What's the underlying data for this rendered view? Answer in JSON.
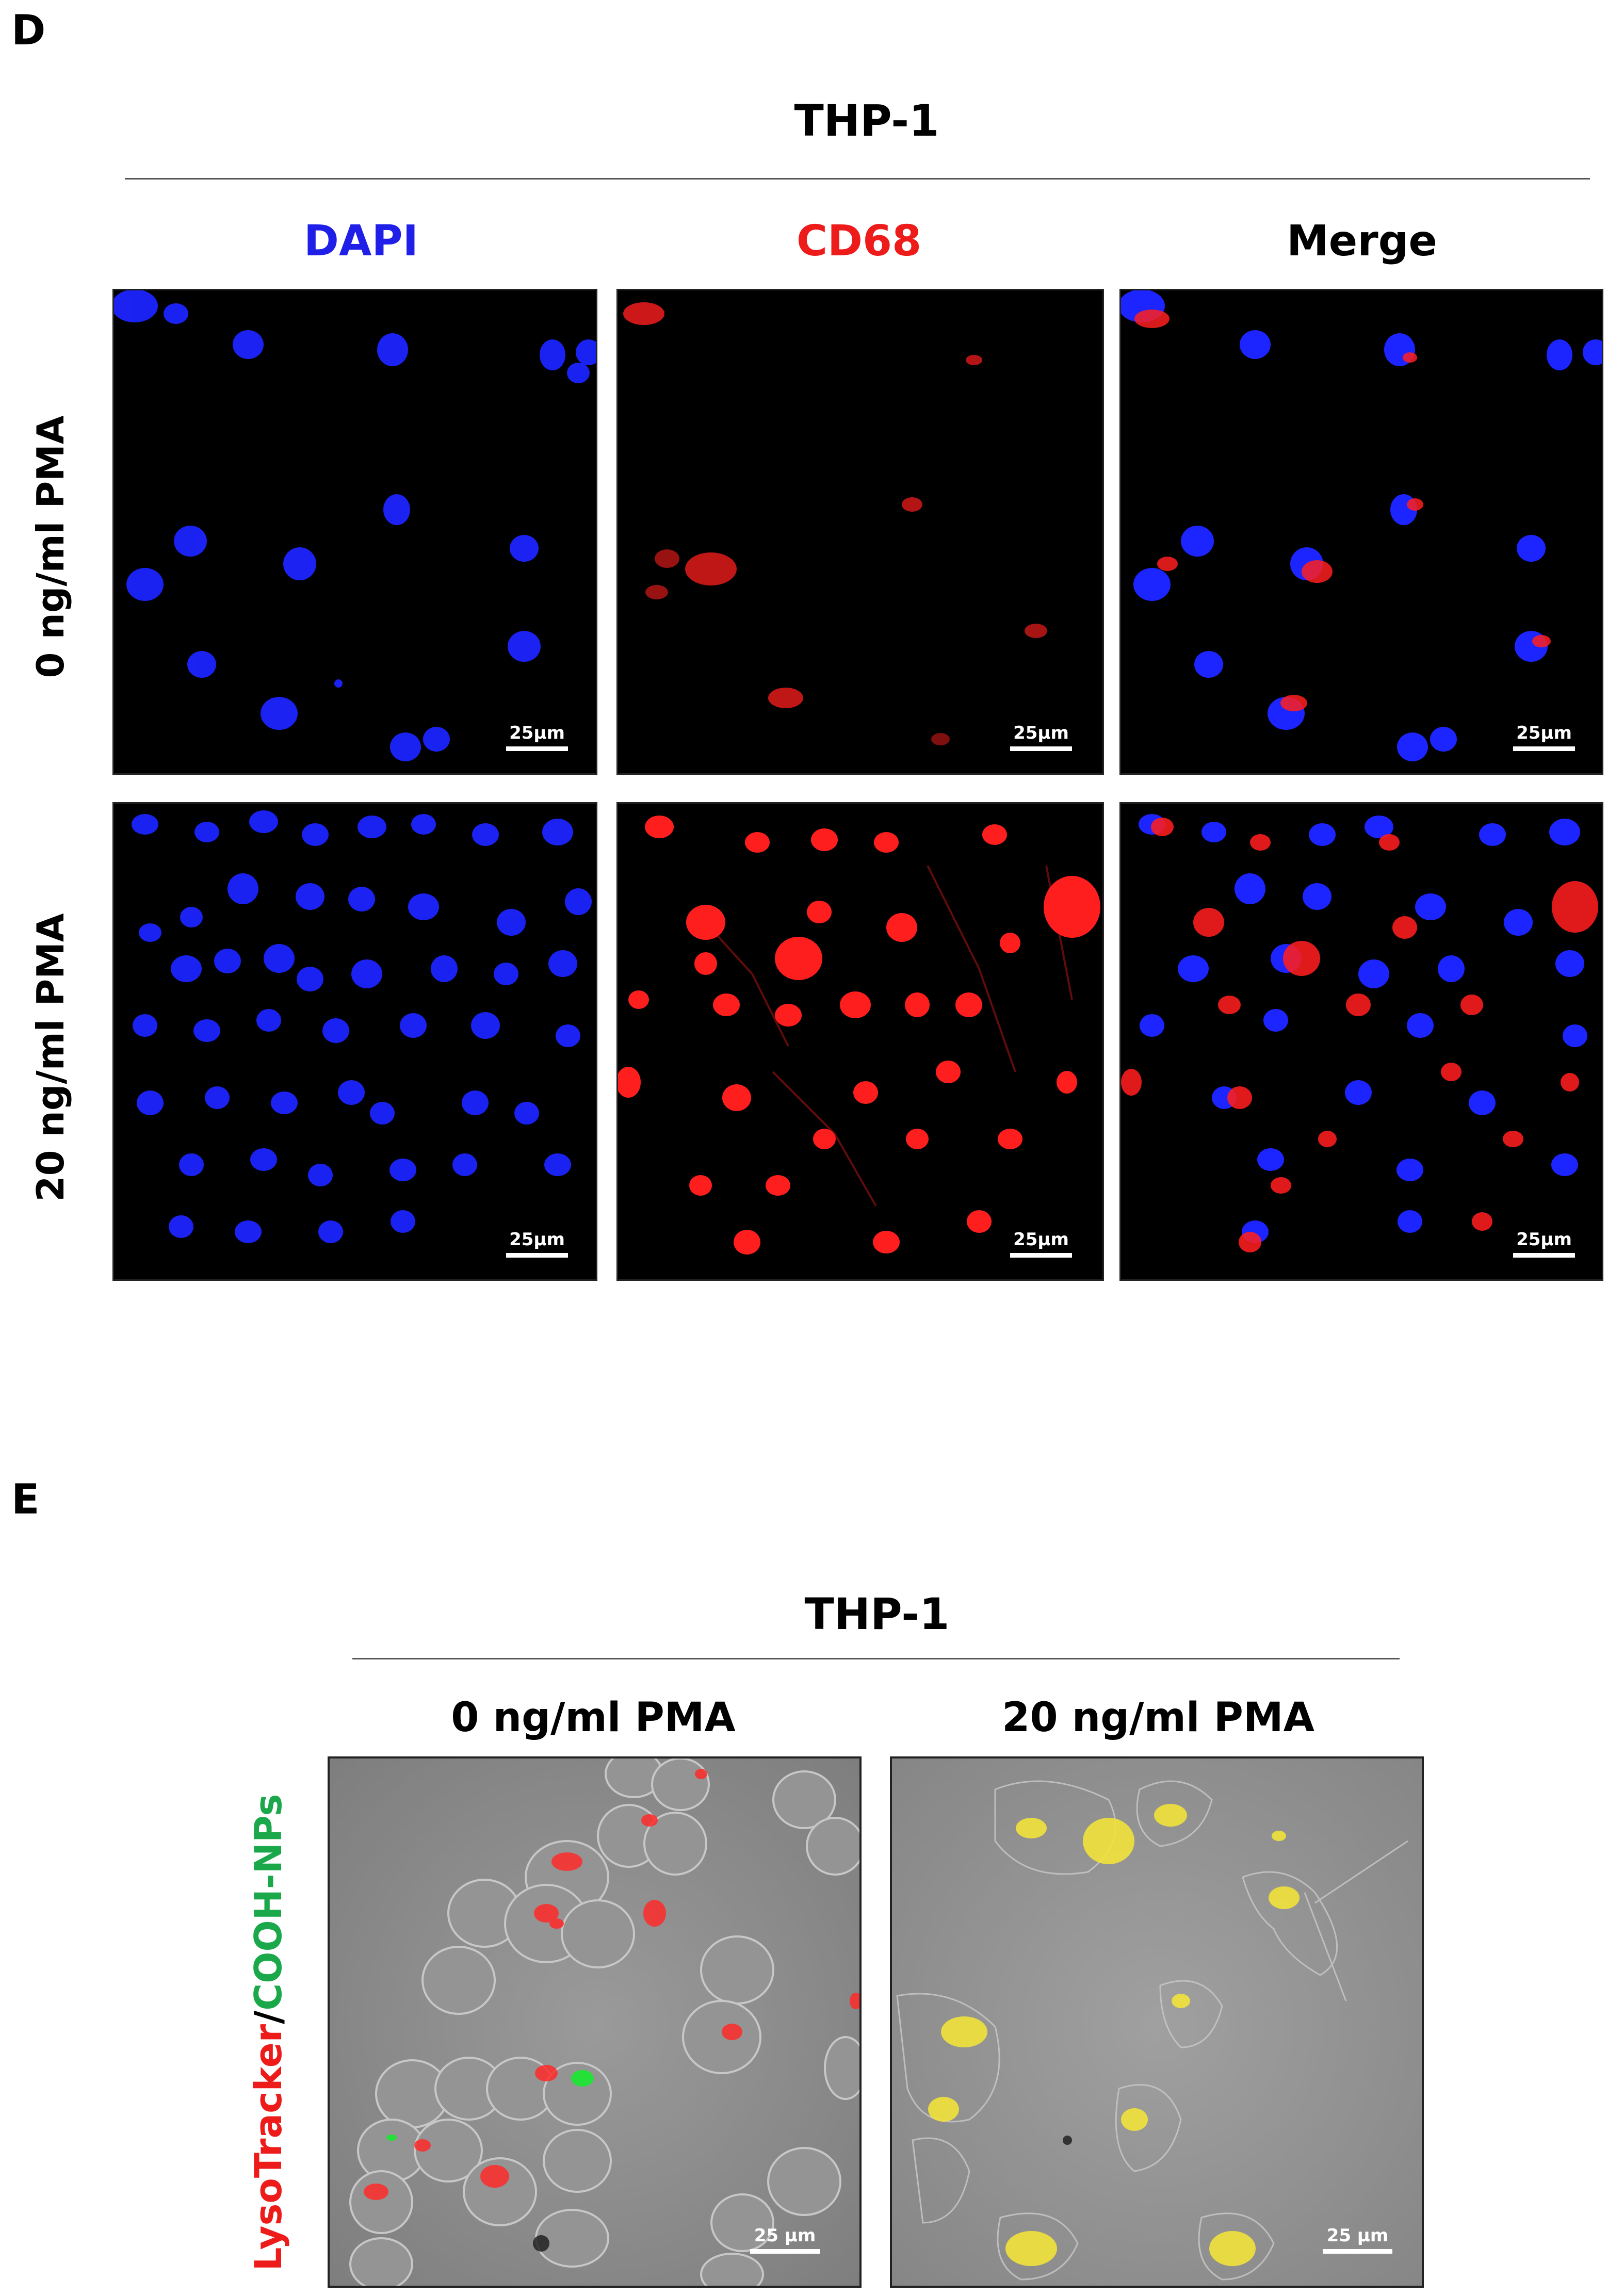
{
  "panel_d": {
    "letter": "D",
    "title": "THP-1",
    "columns": [
      {
        "label": "DAPI",
        "color": "#1f1fe8"
      },
      {
        "label": "CD68",
        "color": "#ee1b1b"
      },
      {
        "label": "Merge",
        "color": "#000000"
      }
    ],
    "rows": [
      {
        "label": "0 ng/ml PMA"
      },
      {
        "label": "20 ng/ml PMA"
      }
    ],
    "scale_label": "25μm"
  },
  "panel_e": {
    "letter": "E",
    "title": "THP-1",
    "conditions": [
      {
        "label": "0 ng/ml PMA"
      },
      {
        "label": "20 ng/ml PMA"
      }
    ],
    "side_label": {
      "part1": "LysoTracker",
      "separator": "/",
      "part2": "COOH-NPs",
      "color1": "#ee1b1b",
      "color2": "#1aa84a"
    },
    "scale_label": "25 μm"
  }
}
